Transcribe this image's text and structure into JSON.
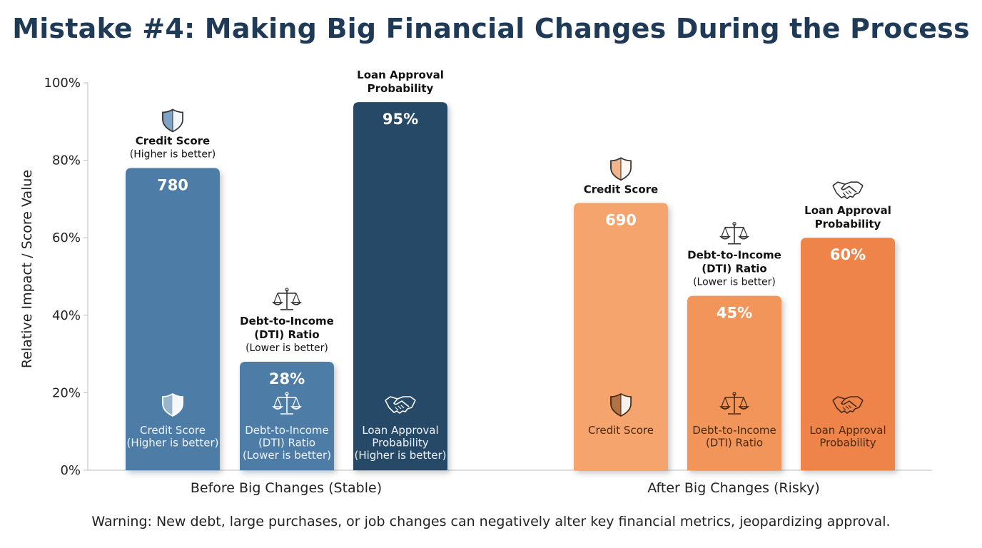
{
  "title": "Mistake #4: Making Big Financial Changes During the Process",
  "footer": "Warning: New debt, large purchases, or job changes can negatively alter key financial metrics, jeopardizing approval.",
  "colors": {
    "before_light": "#4e7ca6",
    "before_dark": "#274868",
    "after_light": "#f4a46c",
    "after_mid": "#f2955a",
    "after_dark": "#ee8448"
  },
  "chart_data": {
    "type": "bar",
    "ylabel": "Relative Impact / Score Value",
    "ylim": [
      0,
      100
    ],
    "yticks": [
      0,
      20,
      40,
      60,
      80,
      100
    ],
    "ytick_labels": [
      "0%",
      "20%",
      "40%",
      "60%",
      "80%",
      "100%"
    ],
    "grid": false,
    "groups": [
      {
        "name": "Before Big Changes (Stable)",
        "bars": [
          {
            "value": 78,
            "label": "780",
            "icon": "shield-icon",
            "color": "#4e7ca6",
            "annotation": [
              "Credit Score"
            ],
            "annotation_sub": "(Higher is better)",
            "inner": [
              "Credit Score",
              "(Higher is better)"
            ]
          },
          {
            "value": 28,
            "label": "28%",
            "icon": "scale-icon",
            "color": "#4e7ca6",
            "annotation": [
              "Debt-to-Income",
              "(DTI) Ratio"
            ],
            "annotation_sub": "(Lower is better)",
            "inner": [
              "Debt-to-Income",
              "(DTI) Ratio",
              "(Lower is better)"
            ]
          },
          {
            "value": 95,
            "label": "95%",
            "icon": "handshake-icon",
            "color": "#274868",
            "annotation": [
              "Loan Approval",
              "Probability"
            ],
            "annotation_sub": "",
            "inner": [
              "Loan Approval",
              "Probability",
              "(Higher is better)"
            ]
          }
        ]
      },
      {
        "name": "After Big Changes (Risky)",
        "bars": [
          {
            "value": 69,
            "label": "690",
            "icon": "shield-icon",
            "color": "#f4a46c",
            "annotation": [
              "Credit Score"
            ],
            "annotation_sub": "",
            "inner": [
              "Credit Score"
            ]
          },
          {
            "value": 45,
            "label": "45%",
            "icon": "scale-icon",
            "color": "#f2955a",
            "annotation": [
              "Debt-to-Income",
              "(DTI) Ratio"
            ],
            "annotation_sub": "(Lower is better)",
            "inner": [
              "Debt-to-Income",
              "(DTI) Ratio"
            ]
          },
          {
            "value": 60,
            "label": "60%",
            "icon": "handshake-icon",
            "color": "#ee8448",
            "annotation": [
              "Loan Approval",
              "Probability"
            ],
            "annotation_sub": "",
            "inner": [
              "Loan Approval",
              "Probability"
            ]
          }
        ]
      }
    ]
  }
}
